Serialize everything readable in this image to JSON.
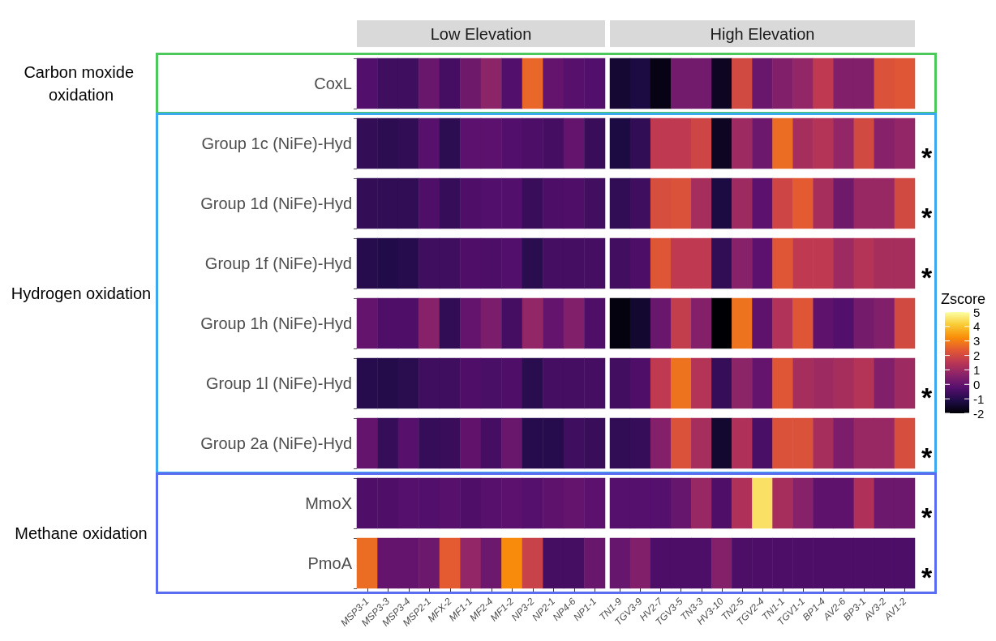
{
  "chart_data": {
    "type": "heatmap",
    "categories": [
      "MSP3-1",
      "MSP3-3",
      "MSP3-4",
      "MSP2-1",
      "MFX-2",
      "MF1-1",
      "MF2-4",
      "MF1-2",
      "NP3-2",
      "NP2-1",
      "NP4-6",
      "NP1-1",
      "TN1-9",
      "TGV3-9",
      "HV2-7",
      "TGV3-5",
      "TN3-3",
      "HV3-10",
      "TN2-5",
      "TGV2-4",
      "TN1-1",
      "TGV1-1",
      "BP1-4",
      "AV2-6",
      "BP3-1",
      "AV3-2",
      "AV1-2"
    ],
    "y_categories": [
      "CoxL",
      "Group 1c (NiFe)-Hyd",
      "Group 1d (NiFe)-Hyd",
      "Group 1f (NiFe)-Hyd",
      "Group 1h (NiFe)-Hyd",
      "Group 1l (NiFe)-Hyd",
      "Group 2a (NiFe)-Hyd",
      "MmoX",
      "PmoA"
    ],
    "y2_categories": [
      null,
      "*",
      "*",
      "*",
      null,
      "*",
      "*",
      "*",
      "*"
    ],
    "cells": [
      [
        -0.3,
        -0.6,
        -0.6,
        0.1,
        -0.5,
        0.2,
        0.7,
        -0.3,
        2.6,
        0,
        -0.2,
        -0.3,
        -1.4,
        -1.2,
        -1.8,
        0.25,
        0.25,
        -1.6,
        2,
        0.1,
        0.5,
        0.8,
        1.6,
        0.5,
        0.5,
        2.2,
        2.3
      ],
      [
        -0.8,
        -0.9,
        -0.85,
        -0.2,
        -0.9,
        -0.15,
        -0.15,
        -0.3,
        -0.4,
        -0.5,
        0,
        -0.7,
        -1.2,
        -0.85,
        1.6,
        1.6,
        1.9,
        -1.6,
        1,
        0.15,
        2.7,
        1.15,
        1.4,
        0.8,
        2,
        0.6,
        0.8
      ],
      [
        -0.8,
        -0.85,
        -0.85,
        -0.35,
        -0.75,
        -0.35,
        -0.3,
        -0.3,
        -0.7,
        -0.4,
        -0.35,
        -0.55,
        -0.85,
        -0.6,
        2.1,
        2.2,
        1.15,
        -1.2,
        1,
        -0.15,
        1.9,
        2.4,
        1.15,
        0.2,
        0.9,
        0.9,
        2
      ],
      [
        -1,
        -1.1,
        -1,
        -0.6,
        -0.6,
        -0.35,
        -0.4,
        -0.3,
        -0.95,
        -0.5,
        -0.5,
        -0.5,
        -0.55,
        -0.4,
        2.3,
        1.6,
        1.6,
        -0.85,
        0.6,
        -0.15,
        2.3,
        1.6,
        1.6,
        1,
        1.4,
        1.15,
        1.15
      ],
      [
        0,
        -0.35,
        -0.35,
        0.6,
        -0.85,
        0,
        0.4,
        -0.5,
        0.8,
        0,
        0.5,
        -0.35,
        -1.85,
        -1.45,
        0.1,
        1.7,
        0.55,
        -2,
        2.8,
        -0.1,
        1.35,
        2.3,
        -0.1,
        -0.3,
        0.3,
        0.5,
        2
      ],
      [
        -1,
        -1.05,
        -0.95,
        -0.6,
        -0.6,
        -0.35,
        -0.45,
        -0.35,
        -0.95,
        -0.5,
        -0.5,
        -0.5,
        -0.55,
        -0.35,
        1.6,
        2.8,
        1.4,
        -0.75,
        0.7,
        0,
        2.3,
        1.15,
        1,
        1.15,
        1.4,
        0.5,
        1
      ],
      [
        0,
        -0.75,
        -0.2,
        -0.75,
        -0.7,
        -0.05,
        -0.5,
        0.1,
        -1,
        -1,
        -0.6,
        -0.7,
        -0.85,
        -0.75,
        0.55,
        2.2,
        1.15,
        -1.45,
        1.3,
        -0.45,
        2.2,
        2.2,
        1.15,
        0.4,
        0.9,
        0.9,
        2.1
      ],
      [
        -0.35,
        -0.35,
        -0.25,
        -0.3,
        -0.2,
        -0.35,
        -0.2,
        -0.15,
        -0.25,
        -0.1,
        0,
        -0.15,
        -0.25,
        -0.25,
        -0.25,
        0.05,
        0.9,
        -0.35,
        1.3,
        4.5,
        1.15,
        0.6,
        -0.1,
        -0.1,
        1.3,
        0.15,
        0.15
      ],
      [
        2.7,
        0,
        0,
        0.15,
        2.4,
        0.8,
        0.15,
        3.2,
        1.8,
        -0.5,
        -0.5,
        0.1,
        0.05,
        0.5,
        -0.4,
        -0.4,
        -0.4,
        0.55,
        -0.4,
        -0.4,
        -0.4,
        -0.4,
        -0.4,
        -0.4,
        -0.4,
        -0.4,
        -0.4
      ]
    ],
    "clim": [
      -2,
      5
    ],
    "cticks": [
      -2,
      -1,
      0,
      1,
      2,
      3,
      4,
      5
    ],
    "clabel": "Zscore",
    "annotations": [
      "Low Elevation",
      "High Elevation",
      "Carbon moxide oxidation",
      "Hydrogen oxidation",
      "Methane oxidation"
    ]
  }
}
